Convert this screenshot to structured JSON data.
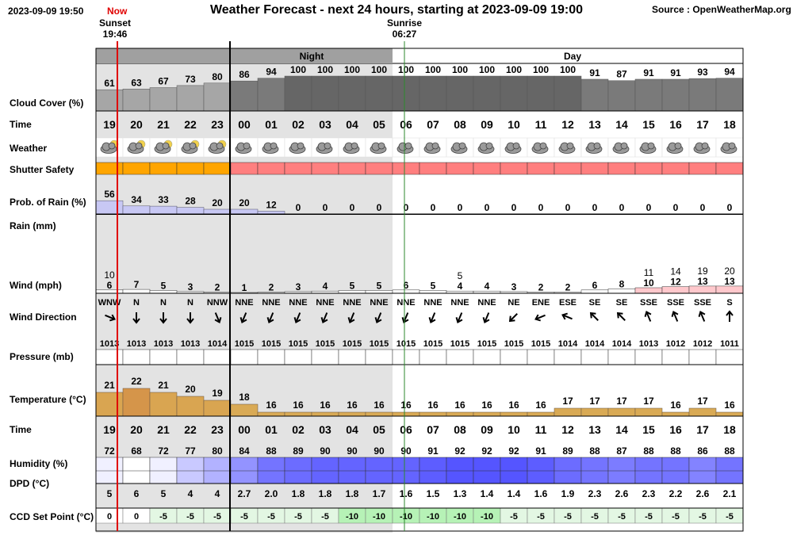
{
  "header": {
    "date": "2023-09-09 19:50",
    "now": "Now",
    "title": "Weather Forecast - next 24 hours, starting at 2023-09-09 19:00",
    "source": "Source : OpenWeatherMap.org",
    "sunset_label": "Sunset",
    "sunset_time": "19:46",
    "sunrise_label": "Sunrise",
    "sunrise_time": "06:27"
  },
  "period_labels": {
    "night": "Night",
    "day": "Day"
  },
  "row_labels": {
    "cloud": "Cloud Cover (%)",
    "time": "Time",
    "weather": "Weather",
    "shutter": "Shutter Safety",
    "rain_prob": "Prob. of Rain (%)",
    "rain": "Rain (mm)",
    "wind": "Wind (mph)",
    "wind_dir": "Wind Direction",
    "pressure": "Pressure (mb)",
    "temperature": "Temperature (°C)",
    "time2": "Time",
    "humidity": "Humidity (%)",
    "dpd": "DPD (°C)",
    "ccd": "CCD Set Point (°C)"
  },
  "chart_data": {
    "type": "table",
    "hours": [
      "19",
      "20",
      "21",
      "22",
      "23",
      "00",
      "01",
      "02",
      "03",
      "04",
      "05",
      "06",
      "07",
      "08",
      "09",
      "10",
      "11",
      "12",
      "13",
      "14",
      "15",
      "16",
      "17",
      "18"
    ],
    "cloud_cover": [
      61,
      63,
      67,
      73,
      80,
      86,
      94,
      100,
      100,
      100,
      100,
      100,
      100,
      100,
      100,
      100,
      100,
      100,
      91,
      87,
      91,
      91,
      93,
      94
    ],
    "weather_icon": [
      "partly-cloudy-night-icon",
      "partly-cloudy-night-icon",
      "partly-cloudy-night-icon",
      "partly-cloudy-night-icon",
      "partly-cloudy-night-icon",
      "cloudy-icon",
      "cloudy-icon",
      "cloudy-icon",
      "cloudy-icon",
      "cloudy-icon",
      "cloudy-icon",
      "cloudy-icon",
      "cloudy-icon",
      "cloudy-icon",
      "cloudy-icon",
      "cloudy-icon",
      "cloudy-icon",
      "cloudy-icon",
      "cloudy-icon",
      "cloudy-icon",
      "cloudy-icon",
      "cloudy-icon",
      "cloudy-icon",
      "cloudy-icon"
    ],
    "shutter_safety": [
      "caution",
      "caution",
      "caution",
      "caution",
      "caution",
      "unsafe",
      "unsafe",
      "unsafe",
      "unsafe",
      "unsafe",
      "unsafe",
      "unsafe",
      "unsafe",
      "unsafe",
      "unsafe",
      "unsafe",
      "unsafe",
      "unsafe",
      "unsafe",
      "unsafe",
      "unsafe",
      "unsafe",
      "unsafe",
      "unsafe"
    ],
    "rain_probability": [
      56,
      34,
      33,
      28,
      20,
      20,
      12,
      0,
      0,
      0,
      0,
      0,
      0,
      0,
      0,
      0,
      0,
      0,
      0,
      0,
      0,
      0,
      0,
      0
    ],
    "wind_speed": [
      6,
      7,
      5,
      3,
      2,
      1,
      2,
      3,
      4,
      5,
      5,
      6,
      5,
      4,
      4,
      3,
      2,
      2,
      6,
      8,
      10,
      12,
      13,
      13
    ],
    "wind_gust": [
      10,
      null,
      null,
      null,
      null,
      null,
      null,
      null,
      null,
      null,
      null,
      null,
      null,
      5,
      null,
      null,
      null,
      null,
      null,
      null,
      11,
      14,
      19,
      20
    ],
    "wind_direction": [
      "WNW",
      "N",
      "N",
      "N",
      "NNW",
      "NNE",
      "NNE",
      "NNE",
      "NNE",
      "NNE",
      "NNE",
      "NNE",
      "NNE",
      "NNE",
      "NNE",
      "NE",
      "ENE",
      "ESE",
      "SE",
      "SE",
      "SSE",
      "SSE",
      "SSE",
      "S"
    ],
    "pressure": [
      1013,
      1013,
      1013,
      1013,
      1014,
      1015,
      1015,
      1015,
      1015,
      1015,
      1015,
      1015,
      1015,
      1015,
      1015,
      1015,
      1015,
      1014,
      1014,
      1014,
      1013,
      1012,
      1012,
      1011
    ],
    "temperature": [
      21,
      22,
      21,
      20,
      19,
      18,
      16,
      16,
      16,
      16,
      16,
      16,
      16,
      16,
      16,
      16,
      16,
      17,
      17,
      17,
      17,
      16,
      17,
      16
    ],
    "humidity": [
      72,
      68,
      72,
      77,
      80,
      84,
      88,
      89,
      90,
      90,
      90,
      90,
      91,
      92,
      92,
      92,
      91,
      89,
      88,
      87,
      88,
      88,
      86,
      88
    ],
    "dpd": [
      "5",
      "6",
      "5",
      "4",
      "4",
      "2.7",
      "2.0",
      "1.8",
      "1.8",
      "1.8",
      "1.7",
      "1.6",
      "1.5",
      "1.3",
      "1.4",
      "1.4",
      "1.6",
      "1.9",
      "2.3",
      "2.6",
      "2.3",
      "2.2",
      "2.6",
      "2.1"
    ],
    "ccd_set_point": [
      "0",
      "0",
      "-5",
      "-5",
      "-5",
      "-5",
      "-5",
      "-5",
      "-5",
      "-10",
      "-10",
      "-10",
      "-10",
      "-10",
      "-10",
      "-5",
      "-5",
      "-5",
      "-5",
      "-5",
      "-5",
      "-5",
      "-5",
      "-5"
    ]
  },
  "colors": {
    "night_shade": "#e3e3e3",
    "cloud_bar_light": "#a6a6a6",
    "cloud_bar_dark": "#666666",
    "shutter_caution": "#ffa500",
    "shutter_unsafe": "#ff7f7f",
    "rain_prob_bar": "#c8c8f4",
    "wind_bar_low": "#ffffff",
    "wind_bar_high": "#ffc8cc",
    "temperature_bar": "#d9aa55",
    "humidity_bar": "#7c7cfb",
    "ccd_zero": "#ffffff",
    "ccd_minus5": "#e3f7e3",
    "ccd_minus10": "#b6f2b6",
    "now_line": "#e00000",
    "sunrise_line": "#2c8a2c",
    "midnight_line": "#000000"
  }
}
